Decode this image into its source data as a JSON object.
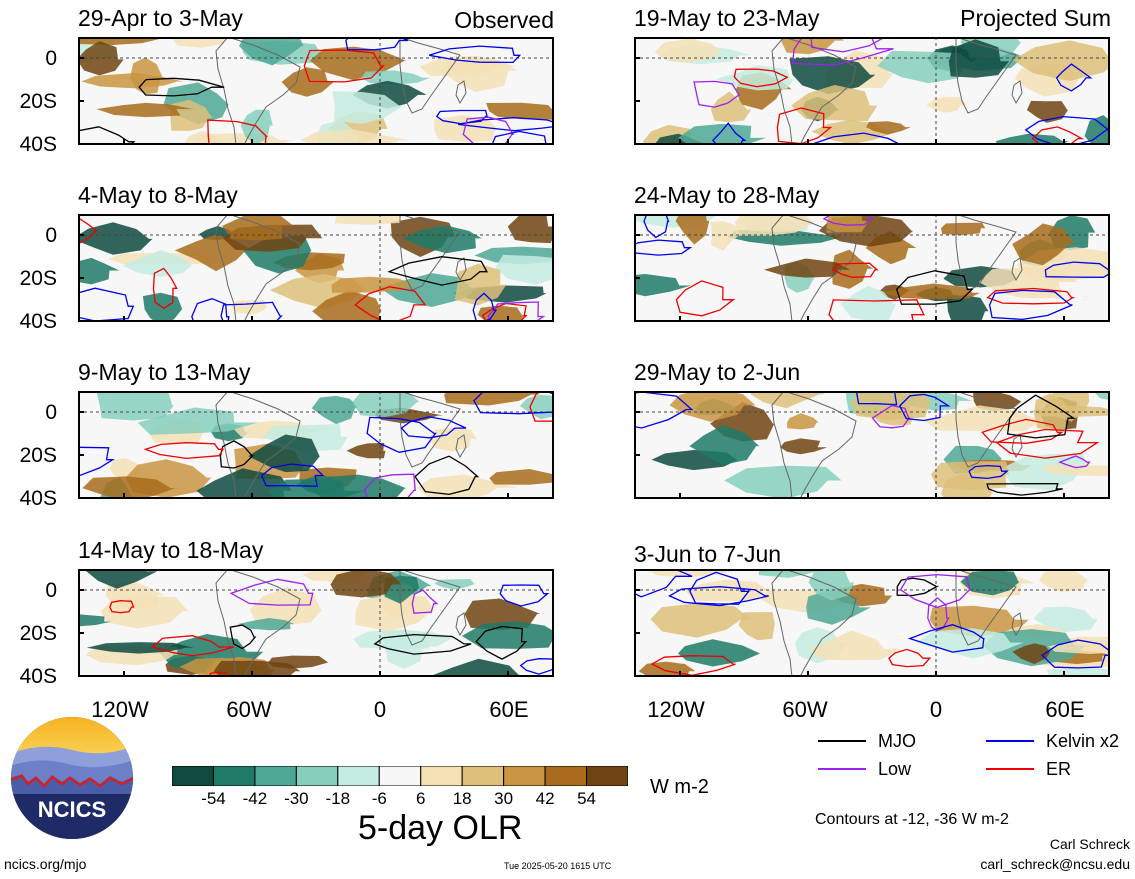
{
  "chart_data": {
    "type": "heatmap",
    "title": "5-day OLR",
    "units": "W m-2",
    "contour_note": "Contours at -12, -36 W m-2",
    "colorbar": {
      "ticks": [
        "-54",
        "-42",
        "-30",
        "-18",
        "-6",
        "6",
        "18",
        "30",
        "42",
        "54"
      ],
      "colors": [
        "#0e4a3e",
        "#1f7a67",
        "#4da896",
        "#86cfbd",
        "#c4ece1",
        "#f7f7f7",
        "#f3e1b6",
        "#ddbf79",
        "#c99542",
        "#a86c1c",
        "#6e4410"
      ]
    },
    "x_ticks": [
      "120W",
      "60W",
      "0",
      "60E"
    ],
    "y_ticks": [
      "0",
      "20S",
      "40S"
    ],
    "legend": [
      {
        "name": "MJO",
        "color": "#000000"
      },
      {
        "name": "Kelvin x2",
        "color": "#0000ee"
      },
      {
        "name": "Low",
        "color": "#a020f0"
      },
      {
        "name": "ER",
        "color": "#ee0000"
      }
    ],
    "panels": [
      {
        "title": "29-Apr to 3-May",
        "label": "Observed"
      },
      {
        "title": "19-May to 23-May",
        "label": "Projected Sum"
      },
      {
        "title": "4-May to 8-May",
        "label": ""
      },
      {
        "title": "24-May to 28-May",
        "label": ""
      },
      {
        "title": "9-May to 13-May",
        "label": ""
      },
      {
        "title": "29-May to 2-Jun",
        "label": ""
      },
      {
        "title": "14-May to 18-May",
        "label": ""
      },
      {
        "title": "3-Jun to 7-Jun",
        "label": ""
      }
    ]
  },
  "footer": {
    "logo_text": "NCICS",
    "url": "ncics.org/mjo",
    "timestamp": "Tue 2025-05-20 1615 UTC",
    "author": "Carl Schreck",
    "email": "carl_schreck@ncsu.edu"
  }
}
